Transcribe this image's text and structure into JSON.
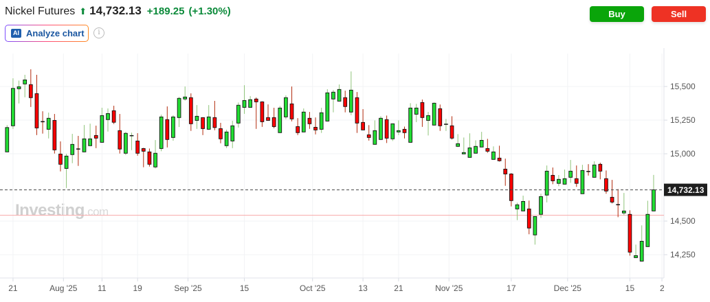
{
  "header": {
    "title": "Nickel Futures",
    "direction_icon": "arrow-up-icon",
    "price": "14,732.13",
    "change": "+189.25",
    "change_pct": "(+1.30%)",
    "change_color": "#0b8a3a"
  },
  "toolbar": {
    "ai_badge": "AI",
    "analyze_label": "Analyze chart",
    "info_icon": "info-icon",
    "buy_label": "Buy",
    "sell_label": "Sell",
    "buy_color": "#0aa50a",
    "sell_color": "#ee3224"
  },
  "watermark": {
    "brand": "Investing",
    "suffix": ".com"
  },
  "chart_data": {
    "type": "candlestick",
    "ylim": [
      14077,
      15745
    ],
    "grid": true,
    "up_color": "#22dd33",
    "down_color": "#ff0000",
    "last_price": 14732.13,
    "last_price_label": "14,732.13",
    "previous_close": 14542.88,
    "y_ticks": [
      {
        "value": 14250,
        "label": "14,250"
      },
      {
        "value": 14500,
        "label": "14,500"
      },
      {
        "value": 15000,
        "label": "15,000"
      },
      {
        "value": 15250,
        "label": "15,250"
      },
      {
        "value": 15500,
        "label": "15,500"
      }
    ],
    "x_ticks": [
      {
        "label": "21",
        "date": "2025-07-21"
      },
      {
        "label": "Aug '25",
        "date": "2025-08-01",
        "month": true
      },
      {
        "label": "11",
        "date": "2025-08-11"
      },
      {
        "label": "19",
        "date": "2025-08-19"
      },
      {
        "label": "Sep '25",
        "date": "2025-09-02",
        "month": true
      },
      {
        "label": "15",
        "date": "2025-09-15"
      },
      {
        "label": "Oct '25",
        "date": "2025-10-01",
        "month": true
      },
      {
        "label": "13",
        "date": "2025-10-13"
      },
      {
        "label": "21",
        "date": "2025-10-21"
      },
      {
        "label": "Nov '25",
        "date": "2025-11-03",
        "month": true
      },
      {
        "label": "17",
        "date": "2025-11-17"
      },
      {
        "label": "Dec '25",
        "date": "2025-12-01",
        "month": true
      },
      {
        "label": "15",
        "date": "2025-12-15"
      },
      {
        "label": "2"
      }
    ],
    "columns": [
      "date",
      "open",
      "high",
      "low",
      "close"
    ],
    "candles": [
      [
        "2025-07-18",
        15014,
        15213,
        15014,
        15195
      ],
      [
        "2025-07-21",
        15208,
        15561,
        15185,
        15486
      ],
      [
        "2025-07-22",
        15483,
        15544,
        15374,
        15498
      ],
      [
        "2025-07-23",
        15519,
        15587,
        15420,
        15549
      ],
      [
        "2025-07-24",
        15514,
        15628,
        15348,
        15417
      ],
      [
        "2025-07-25",
        15447,
        15587,
        15139,
        15192
      ],
      [
        "2025-07-28",
        15240,
        15316,
        15150,
        15238
      ],
      [
        "2025-07-29",
        15182,
        15306,
        15114,
        15264
      ],
      [
        "2025-07-30",
        15248,
        15296,
        15002,
        15029
      ],
      [
        "2025-07-31",
        14998,
        15092,
        14869,
        14922
      ],
      [
        "2025-08-01",
        14891,
        15000,
        14746,
        14983
      ],
      [
        "2025-08-04",
        14994,
        15148,
        14930,
        15070
      ],
      [
        "2025-08-05",
        15037,
        15133,
        14910,
        15035
      ],
      [
        "2025-08-06",
        15014,
        15214,
        15012,
        15111
      ],
      [
        "2025-08-07",
        15060,
        15224,
        15058,
        15111
      ],
      [
        "2025-08-08",
        15136,
        15209,
        15042,
        15116
      ],
      [
        "2025-08-11",
        15085,
        15342,
        15083,
        15284
      ],
      [
        "2025-08-12",
        15254,
        15337,
        15165,
        15299
      ],
      [
        "2025-08-13",
        15320,
        15357,
        15221,
        15234
      ],
      [
        "2025-08-14",
        15172,
        15296,
        15002,
        15035
      ],
      [
        "2025-08-15",
        15004,
        15163,
        14991,
        15152
      ],
      [
        "2025-08-18",
        15134,
        15157,
        15027,
        15136
      ],
      [
        "2025-08-19",
        15095,
        15153,
        14986,
        15004
      ],
      [
        "2025-08-20",
        15039,
        15044,
        14900,
        15019
      ],
      [
        "2025-08-21",
        15014,
        15039,
        14905,
        14922
      ],
      [
        "2025-08-22",
        14902,
        15102,
        14891,
        15004
      ],
      [
        "2025-08-25",
        15039,
        15291,
        15019,
        15274
      ],
      [
        "2025-08-26",
        15254,
        15352,
        15047,
        15106
      ],
      [
        "2025-08-27",
        15121,
        15286,
        15097,
        15274
      ],
      [
        "2025-08-28",
        15269,
        15423,
        15199,
        15412
      ],
      [
        "2025-08-29",
        15407,
        15500,
        15394,
        15422
      ],
      [
        "2025-09-02",
        15417,
        15449,
        15170,
        15223
      ],
      [
        "2025-09-03",
        15248,
        15362,
        15185,
        15279
      ],
      [
        "2025-09-04",
        15269,
        15271,
        15139,
        15187
      ],
      [
        "2025-09-05",
        15182,
        15362,
        15177,
        15274
      ],
      [
        "2025-09-08",
        15269,
        15393,
        15175,
        15195
      ],
      [
        "2025-09-09",
        15187,
        15230,
        15078,
        15111
      ],
      [
        "2025-09-10",
        15060,
        15179,
        15042,
        15162
      ],
      [
        "2025-09-11",
        15095,
        15245,
        15042,
        15208
      ],
      [
        "2025-09-12",
        15228,
        15381,
        15195,
        15361
      ],
      [
        "2025-09-15",
        15345,
        15510,
        15297,
        15396
      ],
      [
        "2025-09-16",
        15345,
        15429,
        15343,
        15402
      ],
      [
        "2025-09-17",
        15407,
        15418,
        15185,
        15386
      ],
      [
        "2025-09-18",
        15386,
        15390,
        15200,
        15238
      ],
      [
        "2025-09-19",
        15269,
        15367,
        15246,
        15248
      ],
      [
        "2025-09-22",
        15269,
        15342,
        15190,
        15202
      ],
      [
        "2025-09-23",
        15157,
        15356,
        15155,
        15340
      ],
      [
        "2025-09-24",
        15274,
        15434,
        15257,
        15417
      ],
      [
        "2025-09-25",
        15371,
        15500,
        15241,
        15259
      ],
      [
        "2025-09-26",
        15202,
        15265,
        15139,
        15157
      ],
      [
        "2025-09-29",
        15162,
        15337,
        15160,
        15310
      ],
      [
        "2025-09-30",
        15264,
        15311,
        15185,
        15223
      ],
      [
        "2025-10-01",
        15197,
        15270,
        15144,
        15177
      ],
      [
        "2025-10-02",
        15182,
        15342,
        15155,
        15305
      ],
      [
        "2025-10-03",
        15243,
        15480,
        15241,
        15453
      ],
      [
        "2025-10-06",
        15407,
        15474,
        15308,
        15458
      ],
      [
        "2025-10-07",
        15391,
        15515,
        15389,
        15478
      ],
      [
        "2025-10-08",
        15417,
        15469,
        15308,
        15351
      ],
      [
        "2025-10-09",
        15310,
        15612,
        15287,
        15473
      ],
      [
        "2025-10-10",
        15417,
        15459,
        15155,
        15228
      ],
      [
        "2025-10-13",
        15233,
        15332,
        15175,
        15177
      ],
      [
        "2025-10-14",
        15141,
        15213,
        15098,
        15121
      ],
      [
        "2025-10-15",
        15070,
        15248,
        15068,
        15172
      ],
      [
        "2025-10-16",
        15106,
        15279,
        15104,
        15264
      ],
      [
        "2025-10-17",
        15254,
        15284,
        15080,
        15116
      ],
      [
        "2025-10-20",
        15111,
        15225,
        15095,
        15223
      ],
      [
        "2025-10-21",
        15162,
        15248,
        15139,
        15172
      ],
      [
        "2025-10-22",
        15182,
        15202,
        15114,
        15157
      ],
      [
        "2025-10-23",
        15085,
        15376,
        15083,
        15340
      ],
      [
        "2025-10-24",
        15294,
        15371,
        15235,
        15340
      ],
      [
        "2025-10-27",
        15381,
        15403,
        15200,
        15269
      ],
      [
        "2025-10-28",
        15248,
        15311,
        15136,
        15284
      ],
      [
        "2025-10-29",
        15213,
        15381,
        15211,
        15376
      ],
      [
        "2025-10-30",
        15335,
        15366,
        15170,
        15208
      ],
      [
        "2025-10-31",
        15221,
        15259,
        15170,
        15221
      ],
      [
        "2025-11-03",
        15208,
        15279,
        15106,
        15116
      ],
      [
        "2025-11-04",
        15055,
        15146,
        15050,
        15075
      ],
      [
        "2025-11-05",
        14999,
        15121,
        14997,
        15009
      ],
      [
        "2025-11-06",
        14973,
        15152,
        14971,
        15044
      ],
      [
        "2025-11-07",
        15004,
        15100,
        15002,
        15055
      ],
      [
        "2025-11-10",
        15050,
        15163,
        15048,
        15100
      ],
      [
        "2025-11-11",
        15039,
        15111,
        15007,
        15019
      ],
      [
        "2025-11-12",
        14958,
        15055,
        14956,
        15014
      ],
      [
        "2025-11-13",
        14968,
        15060,
        14942,
        14948
      ],
      [
        "2025-11-14",
        14886,
        14964,
        14762,
        14850
      ],
      [
        "2025-11-17",
        14850,
        14856,
        14609,
        14652
      ],
      [
        "2025-11-18",
        14590,
        14636,
        14507,
        14621
      ],
      [
        "2025-11-19",
        14575,
        14689,
        14573,
        14646
      ],
      [
        "2025-11-20",
        14590,
        14652,
        14402,
        14448
      ],
      [
        "2025-11-21",
        14397,
        14536,
        14325,
        14534
      ],
      [
        "2025-11-24",
        14550,
        14703,
        14524,
        14682
      ],
      [
        "2025-11-25",
        14693,
        14913,
        14639,
        14871
      ],
      [
        "2025-11-26",
        14840,
        14898,
        14774,
        14799
      ],
      [
        "2025-11-27",
        14780,
        14842,
        14759,
        14810
      ],
      [
        "2025-11-28",
        14774,
        14883,
        14772,
        14815
      ],
      [
        "2025-12-01",
        14825,
        14954,
        14784,
        14871
      ],
      [
        "2025-12-02",
        14815,
        14913,
        14754,
        14780
      ],
      [
        "2025-12-03",
        14703,
        14918,
        14701,
        14876
      ],
      [
        "2025-12-04",
        14870,
        14923,
        14838,
        14869
      ],
      [
        "2025-12-05",
        14825,
        14944,
        14823,
        14917
      ],
      [
        "2025-12-08",
        14922,
        14934,
        14810,
        14871
      ],
      [
        "2025-12-09",
        14815,
        14876,
        14703,
        14723
      ],
      [
        "2025-12-10",
        14677,
        14806,
        14631,
        14641
      ],
      [
        "2025-12-11",
        14623,
        14738,
        14529,
        14621
      ],
      [
        "2025-12-12",
        14560,
        14709,
        14544,
        14575
      ],
      [
        "2025-12-15",
        14550,
        14580,
        14243,
        14269
      ],
      [
        "2025-12-16",
        14228,
        14325,
        14226,
        14243
      ],
      [
        "2025-12-17",
        14202,
        14468,
        14200,
        14350
      ],
      [
        "2025-12-18",
        14310,
        14651,
        14308,
        14550
      ],
      [
        "2025-12-19",
        14575,
        14843,
        14573,
        14732.13
      ]
    ]
  }
}
